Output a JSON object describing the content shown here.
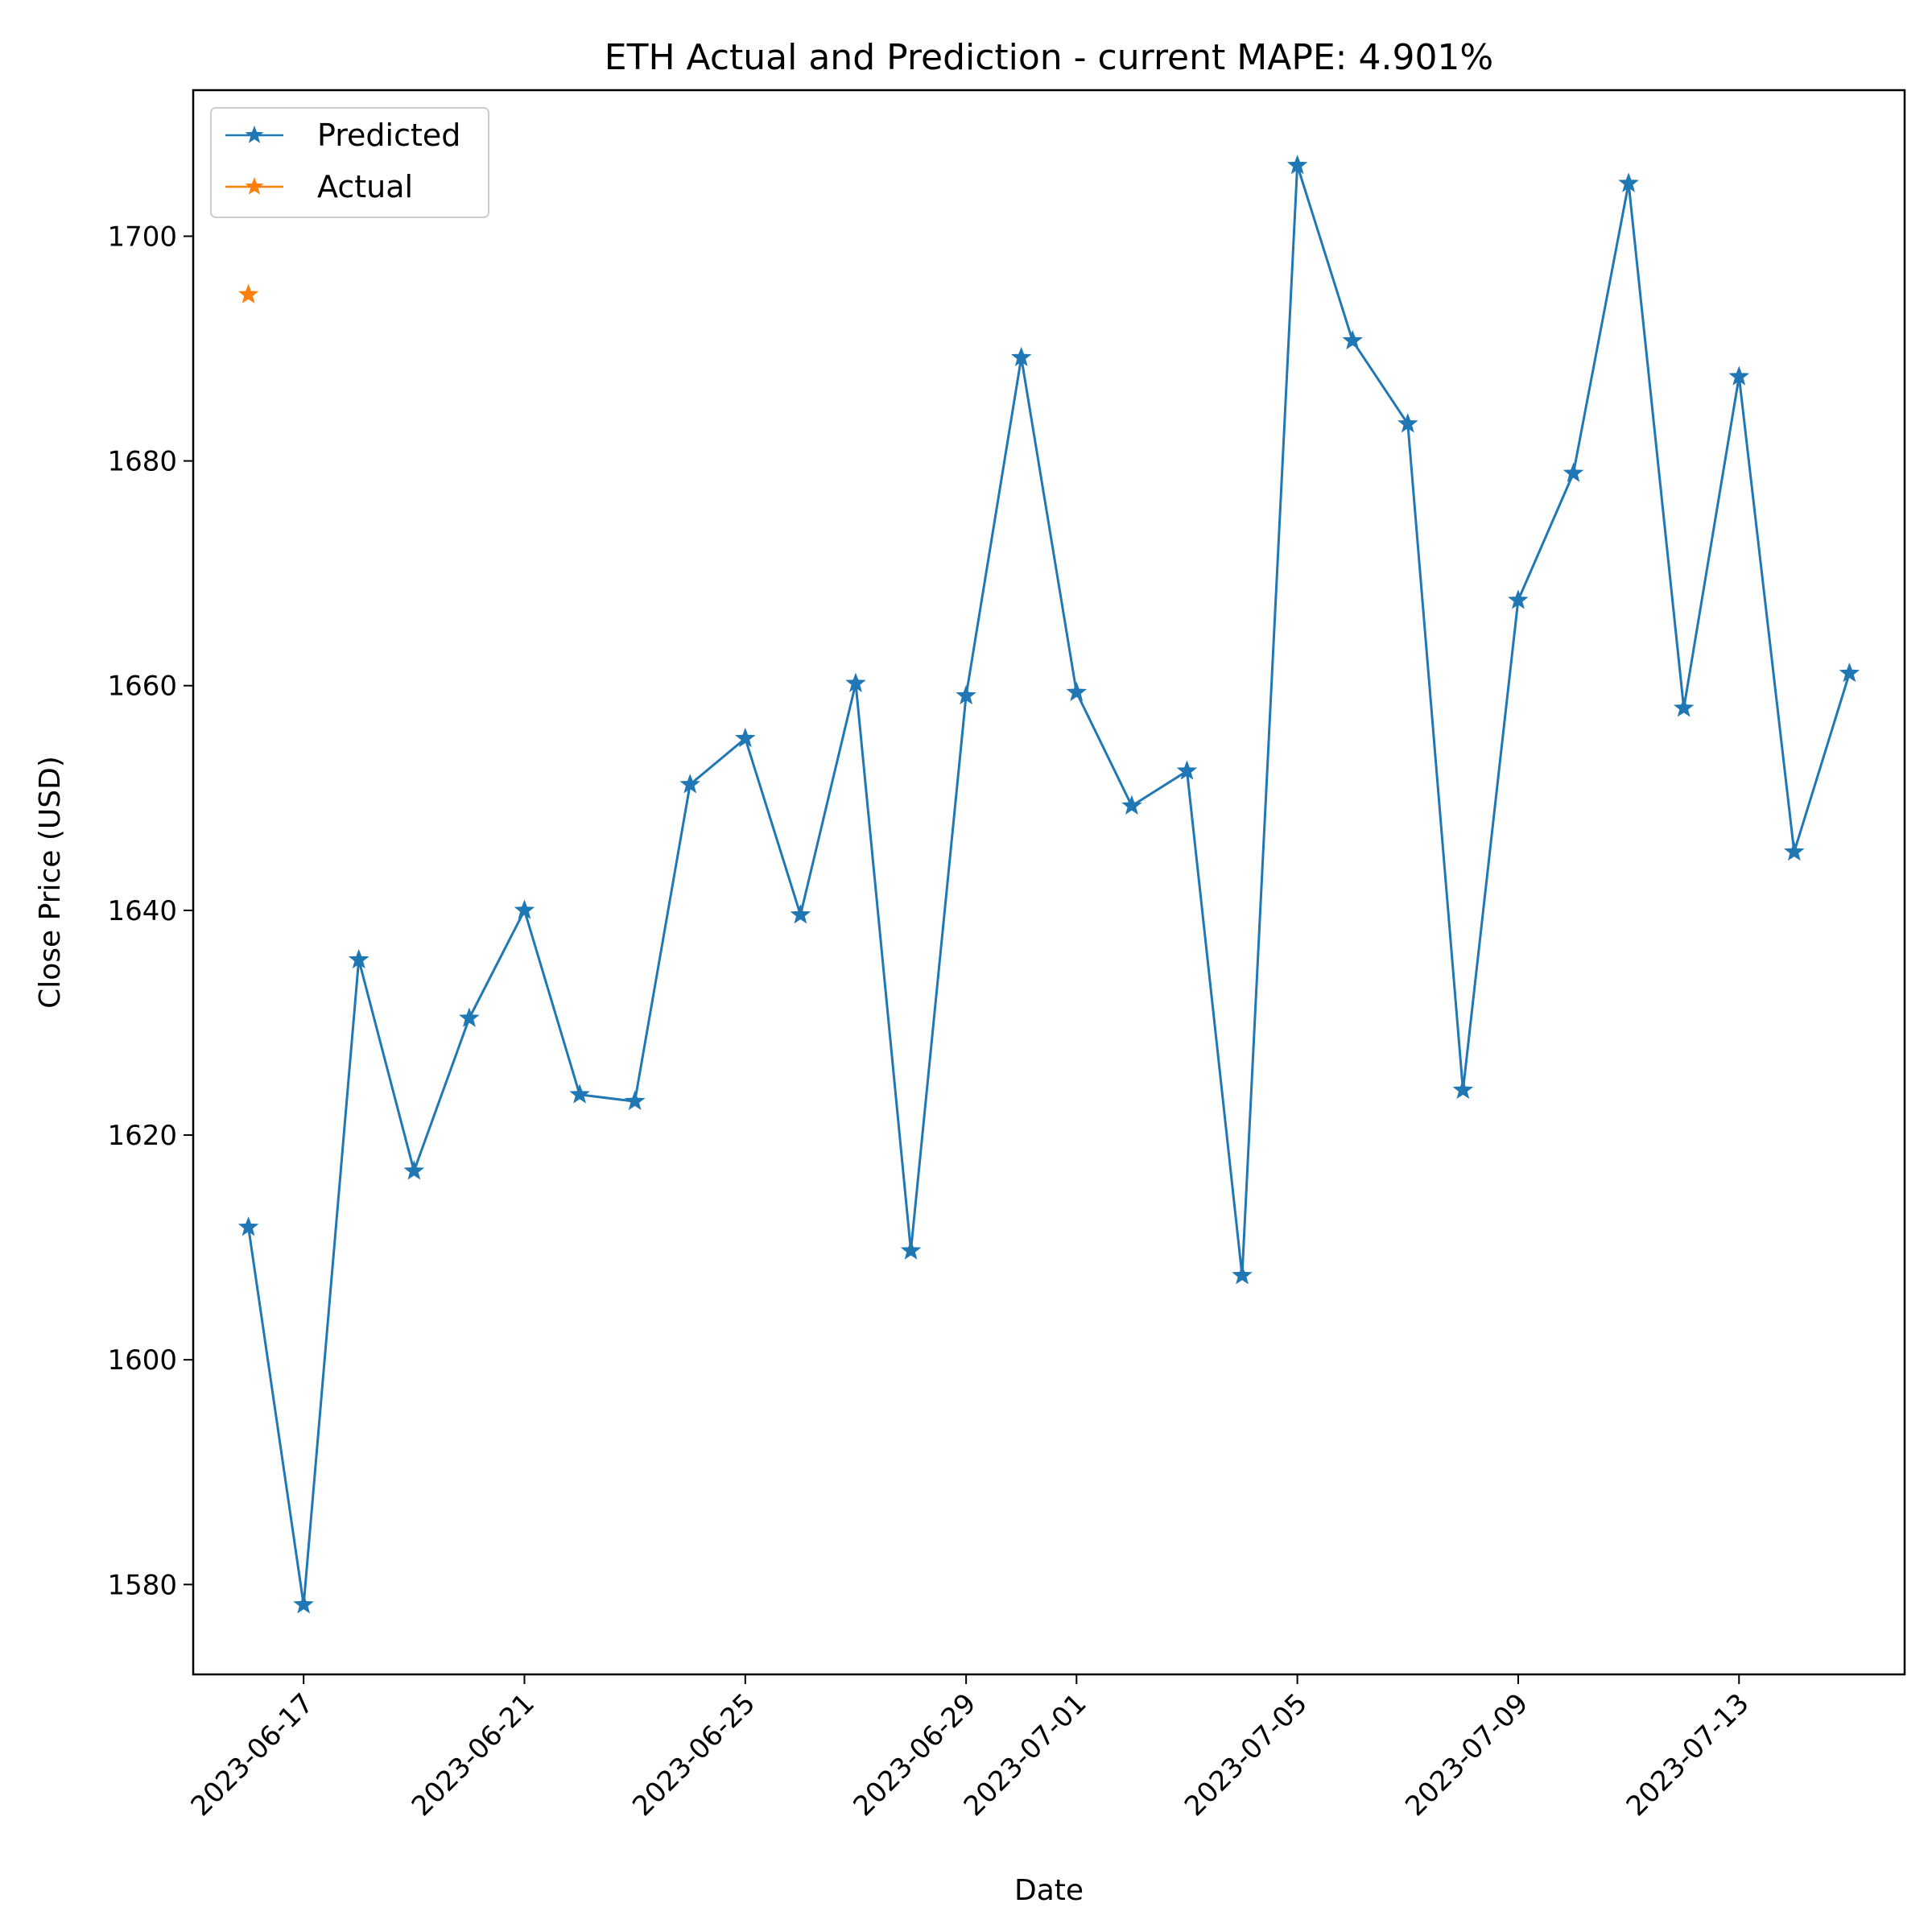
{
  "chart_data": {
    "type": "line",
    "title": "ETH Actual and Prediction - current MAPE: 4.901%",
    "xlabel": "Date",
    "ylabel": "Close Price (USD)",
    "x_tick_labels": [
      "2023-06-17",
      "2023-06-21",
      "2023-06-25",
      "2023-06-29",
      "2023-07-01",
      "2023-07-05",
      "2023-07-09",
      "2023-07-13"
    ],
    "y_ticks": [
      1580,
      1600,
      1620,
      1640,
      1660,
      1680,
      1700
    ],
    "xlim": [
      "2023-06-15",
      "2023-07-16"
    ],
    "ylim": [
      1572,
      1713
    ],
    "grid": false,
    "legend_position": "upper-left",
    "series": [
      {
        "name": "Predicted",
        "color": "#1f77b4",
        "marker": "star",
        "x": [
          "2023-06-16",
          "2023-06-17",
          "2023-06-18",
          "2023-06-19",
          "2023-06-20",
          "2023-06-21",
          "2023-06-22",
          "2023-06-23",
          "2023-06-24",
          "2023-06-25",
          "2023-06-26",
          "2023-06-27",
          "2023-06-28",
          "2023-06-29",
          "2023-06-30",
          "2023-07-01",
          "2023-07-02",
          "2023-07-03",
          "2023-07-04",
          "2023-07-05",
          "2023-07-06",
          "2023-07-07",
          "2023-07-08",
          "2023-07-09",
          "2023-07-10",
          "2023-07-11",
          "2023-07-12",
          "2023-07-13",
          "2023-07-14",
          "2023-07-15"
        ],
        "values": [
          1611.8,
          1578.2,
          1635.6,
          1616.8,
          1630.4,
          1640.0,
          1623.6,
          1623.0,
          1651.2,
          1655.3,
          1639.6,
          1660.2,
          1609.7,
          1659.1,
          1689.2,
          1659.4,
          1649.3,
          1652.4,
          1607.5,
          1706.3,
          1690.7,
          1683.3,
          1624.0,
          1667.6,
          1678.9,
          1704.7,
          1658.0,
          1687.5,
          1645.2,
          1661.1
        ]
      },
      {
        "name": "Actual",
        "color": "#ff7f0e",
        "marker": "star",
        "x": [
          "2023-06-16"
        ],
        "values": [
          1694.8
        ]
      }
    ]
  }
}
